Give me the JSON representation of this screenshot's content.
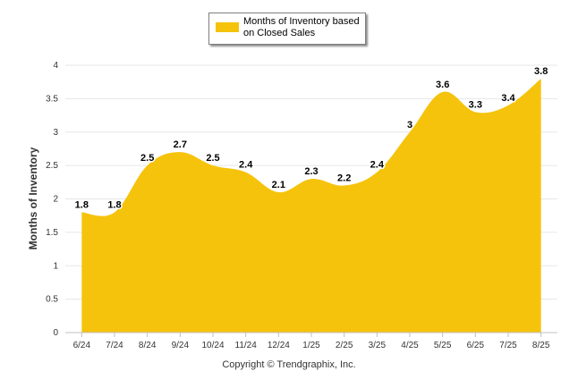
{
  "chart_data": {
    "type": "area",
    "categories": [
      "6/24",
      "7/24",
      "8/24",
      "9/24",
      "10/24",
      "11/24",
      "12/24",
      "1/25",
      "2/25",
      "3/25",
      "4/25",
      "5/25",
      "6/25",
      "7/25",
      "8/25"
    ],
    "series": [
      {
        "name": "Months of Inventory based on Closed Sales",
        "values": [
          1.8,
          1.8,
          2.5,
          2.7,
          2.5,
          2.4,
          2.1,
          2.3,
          2.2,
          2.4,
          3,
          3.6,
          3.3,
          3.4,
          3.8
        ],
        "labels": [
          "1.8",
          "1.8",
          "2.5",
          "2.7",
          "2.5",
          "2.4",
          "2.1",
          "2.3",
          "2.2",
          "2.4",
          "3",
          "3.6",
          "3.3",
          "3.4",
          "3.8"
        ],
        "color": "#F5C30C"
      }
    ],
    "title": "",
    "xlabel": "",
    "ylabel": "Months of Inventory",
    "ylim": [
      0,
      4
    ],
    "yticks": [
      "0",
      "0.5",
      "1",
      "1.5",
      "2",
      "2.5",
      "3",
      "3.5",
      "4"
    ],
    "grid": true,
    "legend": "top-center"
  },
  "copyright": "Copyright © Trendgraphix, Inc.",
  "colors": {
    "area": "#F5C30C",
    "grid": "#e6e6e6",
    "axis": "#c0c0c0"
  }
}
